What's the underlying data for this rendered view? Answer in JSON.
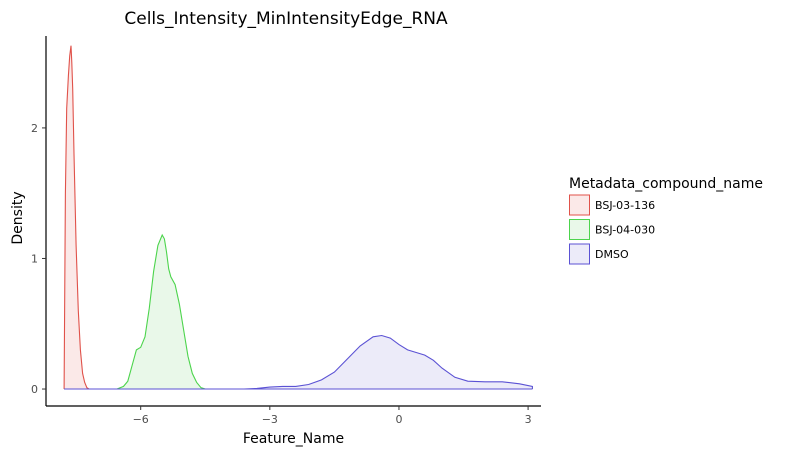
{
  "chart_data": {
    "type": "area",
    "title": "Cells_Intensity_MinIntensityEdge_RNA",
    "xlabel": "Feature_Name",
    "ylabel": "Density",
    "xlim": [
      -8.2,
      3.3
    ],
    "ylim": [
      -0.13,
      2.75
    ],
    "x_ticks": [
      -6,
      -3,
      0,
      3
    ],
    "x_tick_labels": [
      "−6",
      "−3",
      "0",
      "3"
    ],
    "y_ticks": [
      0,
      1,
      2
    ],
    "y_tick_labels": [
      "0",
      "1",
      "2"
    ],
    "grid": false,
    "legend": {
      "title": "Metadata_compound_name",
      "position": "right"
    },
    "series": [
      {
        "name": "BSJ-03-136",
        "color": "#e0524a",
        "fill": "#fbe9e8",
        "x": [
          -7.78,
          -7.75,
          -7.72,
          -7.68,
          -7.65,
          -7.62,
          -7.6,
          -7.58,
          -7.55,
          -7.5,
          -7.45,
          -7.4,
          -7.35,
          -7.3,
          -7.25,
          -7.2
        ],
        "y": [
          0,
          1.5,
          2.15,
          2.4,
          2.55,
          2.63,
          2.5,
          2.3,
          1.8,
          1.1,
          0.6,
          0.3,
          0.12,
          0.05,
          0.01,
          0
        ]
      },
      {
        "name": "BSJ-04-030",
        "color": "#4cd44c",
        "fill": "#e9f8e9",
        "x": [
          -6.55,
          -6.4,
          -6.3,
          -6.2,
          -6.1,
          -6.0,
          -5.9,
          -5.8,
          -5.7,
          -5.6,
          -5.5,
          -5.45,
          -5.4,
          -5.35,
          -5.3,
          -5.2,
          -5.1,
          -5.0,
          -4.9,
          -4.8,
          -4.7,
          -4.6,
          -4.5
        ],
        "y": [
          0,
          0.02,
          0.06,
          0.18,
          0.3,
          0.32,
          0.4,
          0.62,
          0.9,
          1.1,
          1.18,
          1.15,
          1.05,
          0.92,
          0.86,
          0.8,
          0.65,
          0.45,
          0.25,
          0.12,
          0.05,
          0.01,
          0
        ]
      },
      {
        "name": "DMSO",
        "color": "#5b52d4",
        "fill": "#ecebf9",
        "x": [
          -3.6,
          -3.3,
          -3.0,
          -2.7,
          -2.4,
          -2.1,
          -1.8,
          -1.5,
          -1.2,
          -0.9,
          -0.6,
          -0.4,
          -0.2,
          0.0,
          0.2,
          0.4,
          0.6,
          0.8,
          1.0,
          1.3,
          1.6,
          2.0,
          2.4,
          2.8,
          3.1
        ],
        "y": [
          0,
          0.005,
          0.015,
          0.02,
          0.02,
          0.035,
          0.07,
          0.13,
          0.23,
          0.33,
          0.4,
          0.41,
          0.39,
          0.34,
          0.3,
          0.28,
          0.26,
          0.22,
          0.16,
          0.09,
          0.06,
          0.055,
          0.055,
          0.04,
          0.02
        ]
      }
    ]
  }
}
